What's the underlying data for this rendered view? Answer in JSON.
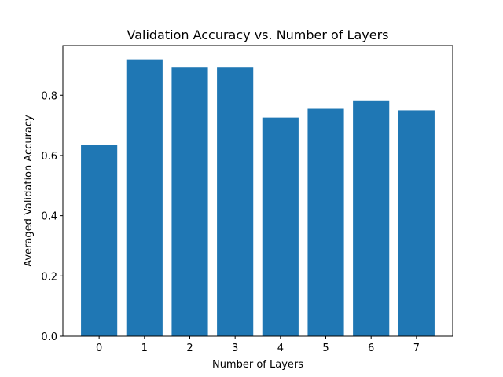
{
  "chart_data": {
    "type": "bar",
    "title": "Validation Accuracy vs. Number of Layers",
    "xlabel": "Number of Layers",
    "ylabel": "Averaged Validation Accuracy",
    "categories": [
      "0",
      "1",
      "2",
      "3",
      "4",
      "5",
      "6",
      "7"
    ],
    "values": [
      0.636,
      0.919,
      0.894,
      0.894,
      0.726,
      0.755,
      0.783,
      0.75
    ],
    "ylim": [
      0,
      0.965
    ],
    "yticks": [
      0.0,
      0.2,
      0.4,
      0.6,
      0.8
    ],
    "ytick_labels": [
      "0.0",
      "0.2",
      "0.4",
      "0.6",
      "0.8"
    ],
    "grid": false,
    "bar_color": "#1f77b4"
  }
}
